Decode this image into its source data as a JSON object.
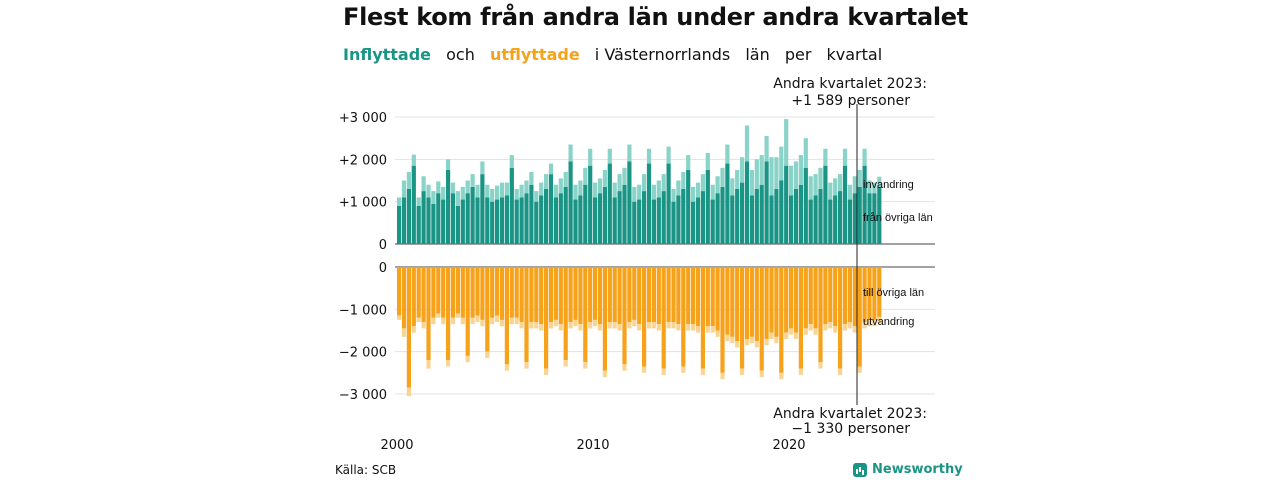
{
  "title": "Flest kom från andra län under andra kvartalet",
  "subtitle": {
    "part1": "Inflyttade",
    "part2": "och",
    "part3": "utflyttade",
    "part4": "i Västernorrlands",
    "part5": "län",
    "part6": "per",
    "part7": "kvartal"
  },
  "source": "Källa: SCB",
  "brand": "Newsworthy",
  "colors": {
    "in_domestic": "#1a9485",
    "in_immigration": "#8ad3c8",
    "out_domestic": "#f7a21b",
    "out_emigration": "#f9d595",
    "gridline": "#e3e3e3"
  },
  "chart_data": {
    "type": "bar",
    "x_start": "2000 Q1",
    "x_ticks": [
      "2000",
      "2010",
      "2020"
    ],
    "panels": [
      {
        "name": "Inflyttade",
        "y_ticks": [
          "+3 000",
          "+2 000",
          "+1 000",
          "0"
        ],
        "ylim": [
          0,
          3000
        ],
        "series": [
          {
            "name": "från övriga län",
            "values": [
              900,
              1100,
              1300,
              1850,
              900,
              1250,
              1100,
              950,
              1200,
              1050,
              1750,
              1200,
              900,
              1050,
              1200,
              1350,
              1100,
              1650,
              1100,
              1000,
              1050,
              1100,
              1150,
              1800,
              1050,
              1100,
              1200,
              1400,
              1000,
              1150,
              1300,
              1650,
              1100,
              1200,
              1350,
              1950,
              1050,
              1150,
              1400,
              1850,
              1100,
              1200,
              1350,
              1900,
              1100,
              1250,
              1400,
              1950,
              1000,
              1050,
              1250,
              1900,
              1050,
              1100,
              1250,
              1900,
              1000,
              1150,
              1300,
              1750,
              1000,
              1100,
              1250,
              1750,
              1050,
              1200,
              1350,
              1900,
              1150,
              1300,
              1450,
              1950,
              1150,
              1300,
              1400,
              1950,
              1150,
              1300,
              1500,
              1850,
              1150,
              1300,
              1400,
              1800,
              1050,
              1150,
              1300,
              1850,
              1050,
              1150,
              1250,
              1850,
              1050,
              1200,
              1350,
              1850,
              1200,
              1200,
              1350
            ]
          },
          {
            "name": "invandring",
            "values": [
              200,
              400,
              400,
              260,
              200,
              350,
              300,
              300,
              280,
              300,
              250,
              250,
              350,
              300,
              300,
              300,
              300,
              300,
              300,
              300,
              330,
              350,
              300,
              300,
              250,
              300,
              300,
              300,
              250,
              300,
              350,
              250,
              300,
              350,
              350,
              400,
              350,
              350,
              400,
              400,
              350,
              350,
              400,
              350,
              350,
              400,
              400,
              400,
              350,
              350,
              400,
              350,
              350,
              400,
              400,
              400,
              300,
              350,
              400,
              350,
              350,
              350,
              400,
              400,
              350,
              400,
              450,
              450,
              400,
              450,
              600,
              850,
              600,
              700,
              700,
              600,
              900,
              750,
              800,
              1100,
              700,
              650,
              700,
              700,
              550,
              500,
              500,
              400,
              400,
              400,
              400,
              400,
              350,
              400,
              400,
              400,
              300,
              250,
              240
            ]
          }
        ]
      },
      {
        "name": "Utflyttade",
        "y_ticks": [
          "0",
          "−1 000",
          "−2 000",
          "−3 000"
        ],
        "ylim": [
          -3000,
          0
        ],
        "series": [
          {
            "name": "till övriga län",
            "values": [
              -1150,
              -1450,
              -2850,
              -1400,
              -1200,
              -1300,
              -2200,
              -1200,
              -1100,
              -1200,
              -2200,
              -1200,
              -1100,
              -1200,
              -2100,
              -1200,
              -1150,
              -1250,
              -2000,
              -1200,
              -1150,
              -1250,
              -2300,
              -1200,
              -1200,
              -1300,
              -2250,
              -1300,
              -1300,
              -1350,
              -2400,
              -1300,
              -1250,
              -1350,
              -2200,
              -1300,
              -1250,
              -1350,
              -2250,
              -1300,
              -1250,
              -1350,
              -2450,
              -1300,
              -1300,
              -1350,
              -2300,
              -1300,
              -1250,
              -1350,
              -2350,
              -1300,
              -1300,
              -1350,
              -2400,
              -1300,
              -1300,
              -1350,
              -2350,
              -1350,
              -1350,
              -1400,
              -2400,
              -1400,
              -1400,
              -1500,
              -2500,
              -1600,
              -1650,
              -1750,
              -2400,
              -1700,
              -1650,
              -1750,
              -2450,
              -1700,
              -1550,
              -1650,
              -2500,
              -1550,
              -1450,
              -1550,
              -2400,
              -1450,
              -1350,
              -1450,
              -2250,
              -1350,
              -1300,
              -1400,
              -2400,
              -1350,
              -1300,
              -1400,
              -2350,
              -1300,
              -1250,
              -1250,
              -1180
            ]
          },
          {
            "name": "utvandring",
            "values": [
              -100,
              -200,
              -200,
              -150,
              -100,
              -150,
              -200,
              -150,
              -100,
              -150,
              -150,
              -150,
              -100,
              -150,
              -150,
              -150,
              -150,
              -150,
              -150,
              -150,
              -150,
              -150,
              -150,
              -150,
              -150,
              -150,
              -150,
              -150,
              -150,
              -150,
              -150,
              -150,
              -150,
              -150,
              -150,
              -150,
              -150,
              -150,
              -150,
              -150,
              -150,
              -150,
              -150,
              -150,
              -150,
              -150,
              -150,
              -150,
              -150,
              -150,
              -150,
              -150,
              -150,
              -150,
              -150,
              -150,
              -150,
              -150,
              -150,
              -150,
              -150,
              -150,
              -150,
              -150,
              -150,
              -150,
              -150,
              -150,
              -150,
              -150,
              -150,
              -150,
              -150,
              -150,
              -150,
              -150,
              -150,
              -150,
              -150,
              -150,
              -150,
              -150,
              -150,
              -150,
              -150,
              -150,
              -150,
              -150,
              -150,
              -150,
              -150,
              -150,
              -150,
              -150,
              -150,
              -150,
              -150,
              -150,
              -150
            ]
          }
        ]
      }
    ],
    "annotations": {
      "top": {
        "line1": "Andra kvartalet 2023:",
        "line2": "+1 589 personer"
      },
      "bottom": {
        "line1": "Andra kvartalet 2023:",
        "line2": "−1 330 personer"
      }
    },
    "grid": true
  }
}
